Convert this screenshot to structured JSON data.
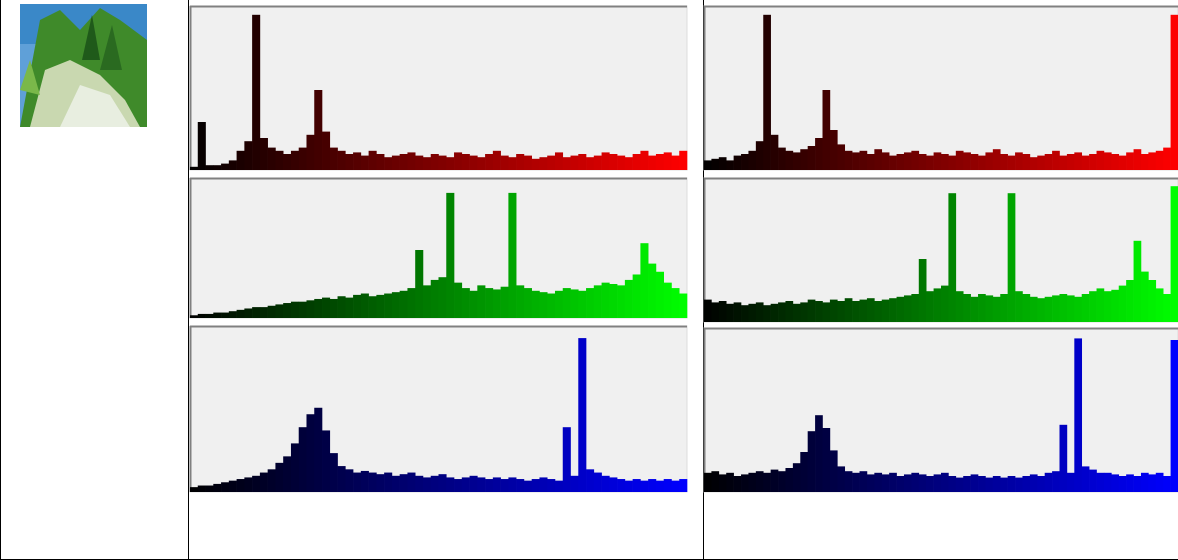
{
  "chart_data": [
    {
      "type": "bar",
      "color": "#ff0000",
      "ylim": [
        0,
        100
      ],
      "values": [
        2,
        30,
        3,
        3,
        4,
        6,
        12,
        18,
        97,
        20,
        14,
        12,
        10,
        12,
        14,
        22,
        50,
        24,
        14,
        12,
        10,
        11,
        9,
        12,
        10,
        8,
        9,
        10,
        11,
        9,
        8,
        10,
        9,
        8,
        11,
        10,
        9,
        8,
        10,
        12,
        9,
        8,
        10,
        9,
        7,
        8,
        9,
        11,
        8,
        9,
        10,
        8,
        9,
        11,
        10,
        9,
        8,
        10,
        12,
        9,
        10,
        11,
        9,
        12
      ]
    },
    {
      "type": "bar",
      "color": "#00ff00",
      "ylim": [
        0,
        100
      ],
      "values": [
        2,
        3,
        3,
        4,
        4,
        5,
        6,
        7,
        8,
        8,
        9,
        10,
        11,
        12,
        12,
        13,
        14,
        15,
        14,
        16,
        15,
        17,
        18,
        16,
        17,
        18,
        19,
        20,
        22,
        50,
        24,
        28,
        30,
        92,
        26,
        22,
        20,
        24,
        22,
        21,
        23,
        92,
        24,
        22,
        20,
        19,
        18,
        20,
        22,
        21,
        20,
        22,
        24,
        26,
        25,
        24,
        28,
        32,
        55,
        40,
        34,
        26,
        22,
        18
      ]
    },
    {
      "type": "bar",
      "color": "#0000ff",
      "ylim": [
        0,
        100
      ],
      "values": [
        3,
        4,
        4,
        5,
        6,
        7,
        8,
        9,
        10,
        12,
        14,
        18,
        22,
        30,
        40,
        48,
        52,
        38,
        24,
        16,
        14,
        12,
        13,
        12,
        11,
        12,
        10,
        11,
        12,
        10,
        9,
        10,
        11,
        9,
        8,
        9,
        10,
        9,
        8,
        9,
        8,
        9,
        8,
        7,
        8,
        9,
        8,
        7,
        40,
        10,
        95,
        14,
        12,
        10,
        9,
        8,
        7,
        8,
        7,
        8,
        7,
        8,
        7,
        8
      ]
    },
    {
      "type": "bar",
      "color": "#ff0000",
      "ylim": [
        0,
        100
      ],
      "values": [
        6,
        7,
        8,
        6,
        9,
        10,
        12,
        18,
        97,
        22,
        14,
        12,
        11,
        13,
        15,
        20,
        50,
        25,
        16,
        12,
        11,
        12,
        10,
        13,
        11,
        9,
        10,
        11,
        12,
        10,
        9,
        11,
        10,
        9,
        12,
        11,
        10,
        9,
        11,
        13,
        10,
        9,
        11,
        10,
        8,
        9,
        10,
        12,
        9,
        10,
        11,
        9,
        10,
        12,
        11,
        10,
        9,
        11,
        13,
        10,
        11,
        12,
        14,
        97
      ]
    },
    {
      "type": "bar",
      "color": "#00ff00",
      "ylim": [
        0,
        100
      ],
      "values": [
        16,
        14,
        15,
        13,
        14,
        12,
        13,
        14,
        12,
        13,
        14,
        15,
        13,
        14,
        16,
        15,
        14,
        16,
        15,
        17,
        15,
        16,
        17,
        15,
        16,
        17,
        18,
        19,
        20,
        45,
        22,
        24,
        26,
        92,
        22,
        20,
        18,
        20,
        19,
        18,
        20,
        92,
        22,
        20,
        18,
        17,
        18,
        19,
        20,
        19,
        18,
        20,
        22,
        24,
        22,
        23,
        26,
        30,
        58,
        36,
        30,
        24,
        20,
        97
      ]
    },
    {
      "type": "bar",
      "color": "#0000ff",
      "ylim": [
        0,
        100
      ],
      "values": [
        12,
        13,
        11,
        12,
        10,
        11,
        12,
        13,
        12,
        14,
        13,
        15,
        18,
        25,
        38,
        48,
        40,
        26,
        16,
        13,
        12,
        13,
        11,
        12,
        11,
        12,
        10,
        11,
        12,
        11,
        10,
        11,
        12,
        10,
        9,
        10,
        11,
        10,
        9,
        10,
        9,
        10,
        9,
        10,
        11,
        10,
        12,
        13,
        42,
        12,
        96,
        16,
        14,
        12,
        12,
        11,
        10,
        11,
        10,
        12,
        11,
        12,
        10,
        95
      ]
    }
  ]
}
